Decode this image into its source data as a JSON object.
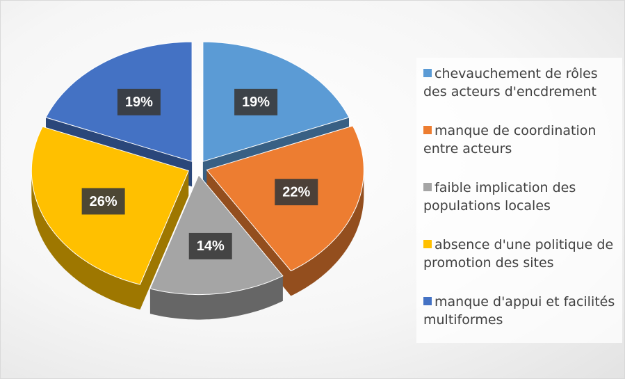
{
  "chart_data": {
    "type": "pie",
    "categories": [
      "chevauchement de rôles des acteurs d'encdrement",
      "manque de coordination entre acteurs",
      "faible implication des populations locales",
      "absence d'une politique de promotion des sites",
      "manque d'appui et facilités multiformes"
    ],
    "values": [
      19,
      22,
      14,
      26,
      19
    ],
    "value_labels": [
      "19%",
      "22%",
      "14%",
      "26%",
      "19%"
    ],
    "colors": [
      "#5b9bd5",
      "#ed7d31",
      "#a5a5a5",
      "#ffc000",
      "#4472c4"
    ],
    "legend": "right"
  }
}
